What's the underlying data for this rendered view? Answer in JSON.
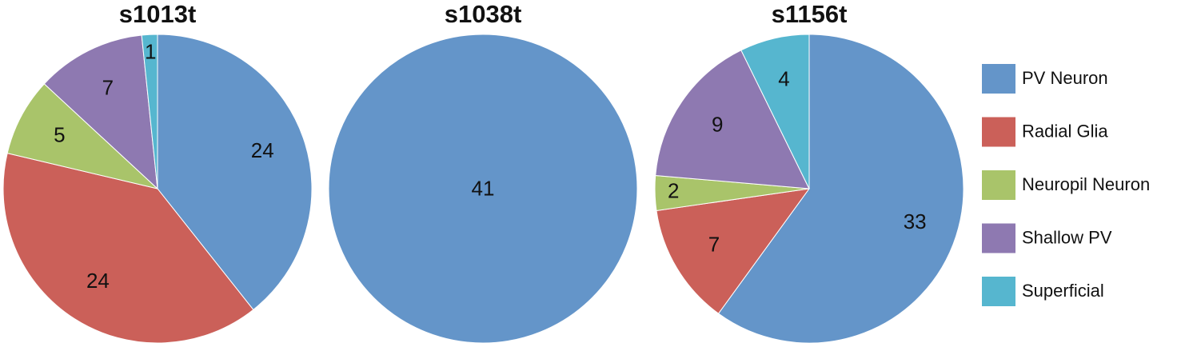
{
  "chart_data": [
    {
      "type": "pie",
      "title": "s1013t",
      "categories": [
        "PV Neuron",
        "Radial Glia",
        "Neuropil Neuron",
        "Shallow PV",
        "Superficial"
      ],
      "values": [
        24,
        24,
        5,
        7,
        1
      ],
      "colors": [
        "#6495c9",
        "#cb6059",
        "#a9c46a",
        "#8e79b1",
        "#56b6cf"
      ],
      "legend": "right"
    },
    {
      "type": "pie",
      "title": "s1038t",
      "categories": [
        "PV Neuron"
      ],
      "values": [
        41
      ],
      "colors": [
        "#6495c9"
      ]
    },
    {
      "type": "pie",
      "title": "s1156t",
      "categories": [
        "PV Neuron",
        "Radial Glia",
        "Neuropil Neuron",
        "Shallow PV",
        "Superficial"
      ],
      "values": [
        33,
        7,
        2,
        9,
        4
      ],
      "colors": [
        "#6495c9",
        "#cb6059",
        "#a9c46a",
        "#8e79b1",
        "#56b6cf"
      ]
    }
  ]
}
